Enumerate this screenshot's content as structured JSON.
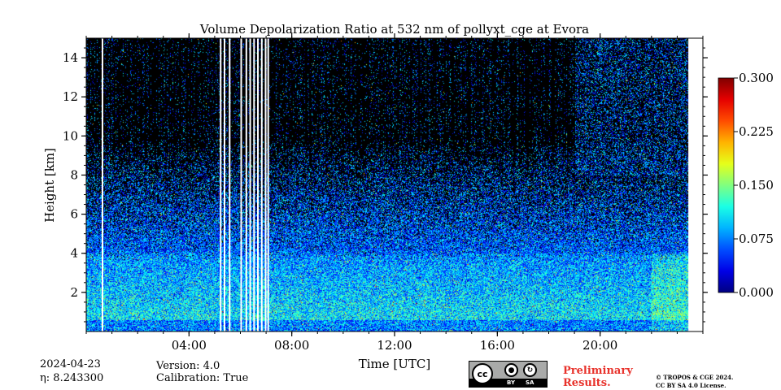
{
  "chart_data": {
    "type": "heatmap",
    "title": "Volume Depolarization Ratio at 532 nm of pollyxt_cge at Evora",
    "xlabel": "Time [UTC]",
    "ylabel": "Height [km]",
    "xlim_hours": [
      0,
      24
    ],
    "ylim_km": [
      0,
      15
    ],
    "data_extent_hours": [
      0,
      23.4
    ],
    "x_ticks": [
      {
        "value": 4,
        "label": "04:00"
      },
      {
        "value": 8,
        "label": "08:00"
      },
      {
        "value": 12,
        "label": "12:00"
      },
      {
        "value": 16,
        "label": "16:00"
      },
      {
        "value": 20,
        "label": "20:00"
      }
    ],
    "y_ticks": [
      {
        "value": 2,
        "label": "2"
      },
      {
        "value": 4,
        "label": "4"
      },
      {
        "value": 6,
        "label": "6"
      },
      {
        "value": 8,
        "label": "8"
      },
      {
        "value": 10,
        "label": "10"
      },
      {
        "value": 12,
        "label": "12"
      },
      {
        "value": 14,
        "label": "14"
      }
    ],
    "colorbar": {
      "colormap": "jet",
      "range": [
        0.0,
        0.3
      ],
      "ticks": [
        "0.000",
        "0.075",
        "0.150",
        "0.225",
        "0.300"
      ]
    },
    "no_data_gaps_hours": [
      0.6,
      5.2,
      5.35,
      5.55,
      6.0,
      6.2,
      6.35,
      6.5,
      6.65,
      6.8,
      6.95,
      7.05
    ]
  },
  "info": {
    "date": "2024-04-23",
    "eta": "η: 8.243300",
    "version": "Version: 4.0",
    "calibration": "Calibration: True"
  },
  "license": {
    "cc": "cc",
    "by": "BY",
    "sa": "SA",
    "preliminary_line1": "Preliminary",
    "preliminary_line2": "Results.",
    "copyright_line1": "© TROPOS & CGE 2024.",
    "copyright_line2": "CC BY SA 4.0 License."
  }
}
